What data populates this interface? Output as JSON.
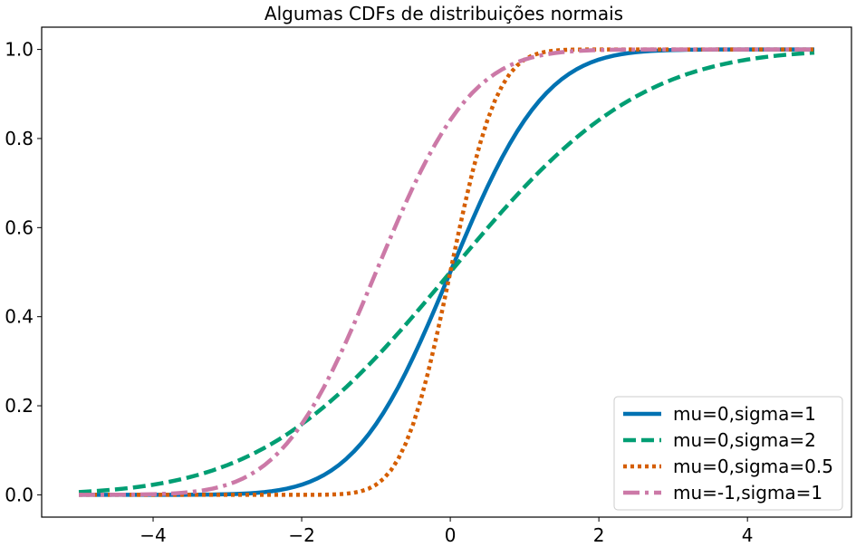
{
  "chart_data": {
    "type": "line",
    "title": "Algumas CDFs de distribuições normais",
    "xlabel": "",
    "ylabel": "",
    "xlim": [
      -5.5,
      5.4
    ],
    "ylim": [
      -0.05,
      1.05
    ],
    "x_ticks": [
      -4,
      -2,
      0,
      2,
      4
    ],
    "x_tick_labels": [
      "−4",
      "−2",
      "0",
      "2",
      "4"
    ],
    "y_ticks": [
      0.0,
      0.2,
      0.4,
      0.6,
      0.8,
      1.0
    ],
    "y_tick_labels": [
      "0.0",
      "0.2",
      "0.4",
      "0.6",
      "0.8",
      "1.0"
    ],
    "x_range": [
      -5.0,
      4.9
    ],
    "x_step": 0.1,
    "grid": false,
    "legend_position": "bottom-right",
    "series": [
      {
        "name": "mu=0,sigma=1",
        "mu": 0,
        "sigma": 1,
        "color": "#0072B2",
        "style": "solid"
      },
      {
        "name": "mu=0,sigma=2",
        "mu": 0,
        "sigma": 2,
        "color": "#009E73",
        "style": "dashed"
      },
      {
        "name": "mu=0,sigma=0.5",
        "mu": 0,
        "sigma": 0.5,
        "color": "#D55E00",
        "style": "dotted"
      },
      {
        "name": "mu=-1,sigma=1",
        "mu": -1,
        "sigma": 1,
        "color": "#CC79A7",
        "style": "dashdot"
      }
    ]
  }
}
